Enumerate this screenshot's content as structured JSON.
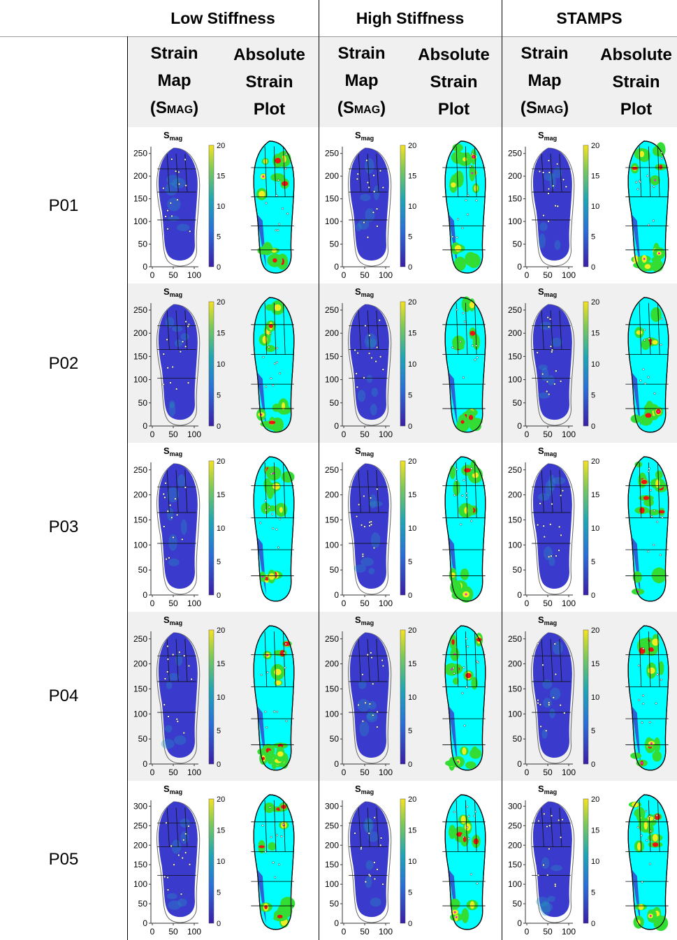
{
  "header": {
    "columns": [
      "Low Stiffness",
      "High Stiffness",
      "STAMPS"
    ]
  },
  "subheader": {
    "strain_map": [
      "Strain",
      "Map",
      "(S",
      "MAG",
      ")"
    ],
    "absolute_plot": [
      "Absolute",
      "Strain",
      "Plot"
    ]
  },
  "rows": [
    "P01",
    "P02",
    "P03",
    "P04",
    "P05"
  ],
  "panel": {
    "title_main": "S",
    "title_sub": "mag"
  },
  "chart_data": [
    {
      "type": "heatmap",
      "title": "Smag",
      "rows": [
        "P01",
        "P02",
        "P03",
        "P04"
      ],
      "x_ticks": [
        "0",
        "50",
        "100"
      ],
      "y_ticks": [
        "0",
        "50",
        "100",
        "150",
        "200",
        "250"
      ],
      "colorbar_ticks": [
        "0",
        "5",
        "10",
        "15",
        "20"
      ],
      "colorbar_range": [
        0,
        20
      ]
    },
    {
      "type": "heatmap",
      "title": "Smag",
      "rows": [
        "P05"
      ],
      "x_ticks": [
        "0",
        "50",
        "100"
      ],
      "y_ticks": [
        "0",
        "50",
        "100",
        "150",
        "200",
        "250",
        "300"
      ],
      "colorbar_ticks": [
        "0",
        "5",
        "10",
        "15",
        "20"
      ],
      "colorbar_range": [
        0,
        20
      ]
    }
  ],
  "colors": {
    "strain_low": "#3a3acc",
    "strain_mid": "#2596be",
    "plot_base": "#00ffff",
    "plot_green": "#33dd33",
    "plot_yellow": "#eeee22",
    "plot_red": "#ee1111",
    "plot_magenta": "#ee22cc",
    "shade": "#f0f0f0"
  }
}
